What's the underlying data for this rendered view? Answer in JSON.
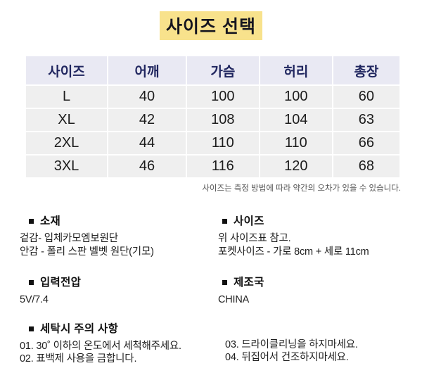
{
  "page": {
    "title": "사이즈 선택"
  },
  "colors": {
    "title_highlight": "#F8E28C",
    "title_text": "#15151f",
    "table_header_bg": "#E9E9F3",
    "table_header_text": "#20265F",
    "table_row_bg": "#EFEFEF",
    "note_text": "#555555"
  },
  "size_table": {
    "columns": [
      "사이즈",
      "어깨",
      "가슴",
      "허리",
      "총장"
    ],
    "rows": [
      {
        "size": "L",
        "values": [
          "40",
          "100",
          "100",
          "60"
        ]
      },
      {
        "size": "XL",
        "values": [
          "42",
          "108",
          "104",
          "63"
        ]
      },
      {
        "size": "2XL",
        "values": [
          "44",
          "110",
          "110",
          "66"
        ]
      },
      {
        "size": "3XL",
        "values": [
          "46",
          "116",
          "120",
          "68"
        ]
      }
    ],
    "note": "사이즈는 측정 방법에 따라 약간의 오차가 있을 수 있습니다."
  },
  "sections": {
    "material": {
      "heading": "소재",
      "lines": [
        "겉감- 입체카모엠보원단",
        "안감 - 폴리 스판 벨벳 원단(기모)"
      ]
    },
    "size_info": {
      "heading": "사이즈",
      "lines": [
        "위 사이즈표 참고.",
        "포켓사이즈 - 가로 8cm + 세로 11cm"
      ]
    },
    "voltage": {
      "heading": "입력전압",
      "lines": [
        "5V/7.4"
      ]
    },
    "origin": {
      "heading": "제조국",
      "lines": [
        "CHINA"
      ]
    },
    "washing": {
      "heading": "세탁시 주의 사항",
      "left_items": [
        "01. 30˚ 이하의 온도에서 세척해주세요.",
        "02. 표백제 사용을 금합니다."
      ],
      "right_items": [
        "03. 드라이클리닝을 하지마세요.",
        "04. 뒤집어서 건조하지마세요."
      ]
    }
  }
}
